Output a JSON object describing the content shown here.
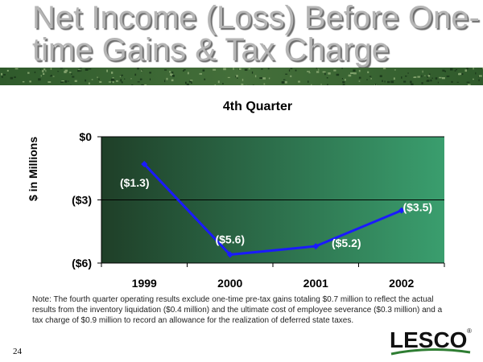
{
  "slide": {
    "title_line1": "Net Income (Loss) Before One-",
    "title_line2": "time Gains & Tax Charge",
    "note": "Note: The fourth quarter operating results exclude one-time pre-tax gains totaling $0.7 million to reflect the actual results from the inventory liquidation ($0.4 million) and the ultimate cost of employee severance ($0.3 million) and a tax charge of $0.9 million to record an allowance for the realization of deferred state taxes.",
    "page_number": "24",
    "logo_text": "LESCO",
    "logo_mark": "®"
  },
  "colors": {
    "title": "#b5b5b5",
    "plot_dark": "#1f3f28",
    "plot_light": "#3a9e6e",
    "line": "#1a1aff",
    "label_text": "#ffffff",
    "logo_green": "#2e7d32"
  },
  "chart_data": {
    "type": "line",
    "title": "4th Quarter",
    "ylabel": "$ in Millions",
    "xlabel": "",
    "categories": [
      "1999",
      "2000",
      "2001",
      "2002"
    ],
    "series": [
      {
        "values": [
          -1.3,
          -5.6,
          -5.2,
          -3.5
        ]
      }
    ],
    "data_labels": [
      "($1.3)",
      "($5.6)",
      "($5.2)",
      "($3.5)"
    ],
    "ylim": [
      -6,
      0
    ],
    "yticks": [
      0,
      -3,
      -6
    ],
    "ytick_labels": [
      "$0",
      "($3)",
      "($6)"
    ],
    "grid": true,
    "legend": "none"
  }
}
